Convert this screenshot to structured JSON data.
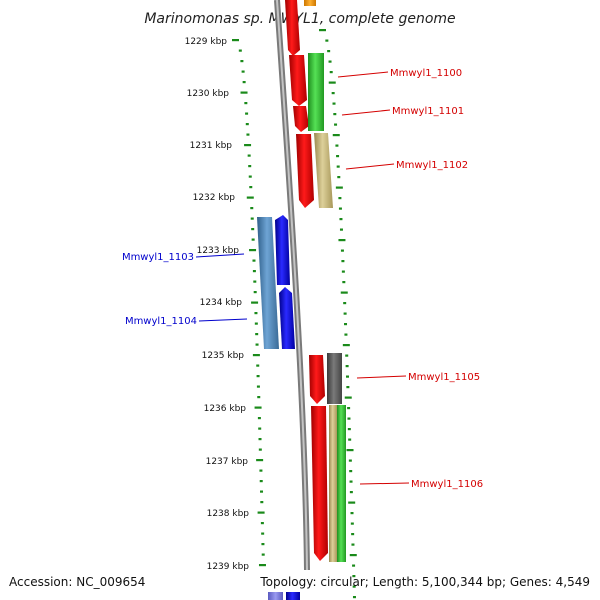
{
  "title": "Marinomonas sp. MWYL1, complete genome",
  "ruler_ticks": [
    "1229 kbp",
    "1230 kbp",
    "1231 kbp",
    "1232 kbp",
    "1233 kbp",
    "1234 kbp",
    "1235 kbp",
    "1236 kbp",
    "1237 kbp",
    "1238 kbp",
    "1239 kbp"
  ],
  "genes": [
    {
      "label": "Mmwyl1_1100",
      "color": "#d40000",
      "strand": "forward"
    },
    {
      "label": "Mmwyl1_1101",
      "color": "#d40000",
      "strand": "forward"
    },
    {
      "label": "Mmwyl1_1102",
      "color": "#d40000",
      "strand": "forward"
    },
    {
      "label": "Mmwyl1_1103",
      "color": "#0000cc",
      "strand": "reverse"
    },
    {
      "label": "Mmwyl1_1104",
      "color": "#0000cc",
      "strand": "reverse"
    },
    {
      "label": "Mmwyl1_1105",
      "color": "#d40000",
      "strand": "forward"
    },
    {
      "label": "Mmwyl1_1106",
      "color": "#d40000",
      "strand": "forward"
    }
  ],
  "footer": {
    "accession": "Accession: NC_009654",
    "summary": "Topology: circular; Length: 5,100,344 bp; Genes: 4,549"
  },
  "colors": {
    "ruler_tick": "#1a8a1a",
    "backbone": "#8a8a8a",
    "forward_gene": "#ff0000",
    "reverse_gene": "#0000ff",
    "cog_green": "#33cc33",
    "cog_khaki": "#c8b878",
    "cog_steel": "#4682b4",
    "cog_gray": "#555555",
    "cog_orange": "#ff9900"
  }
}
